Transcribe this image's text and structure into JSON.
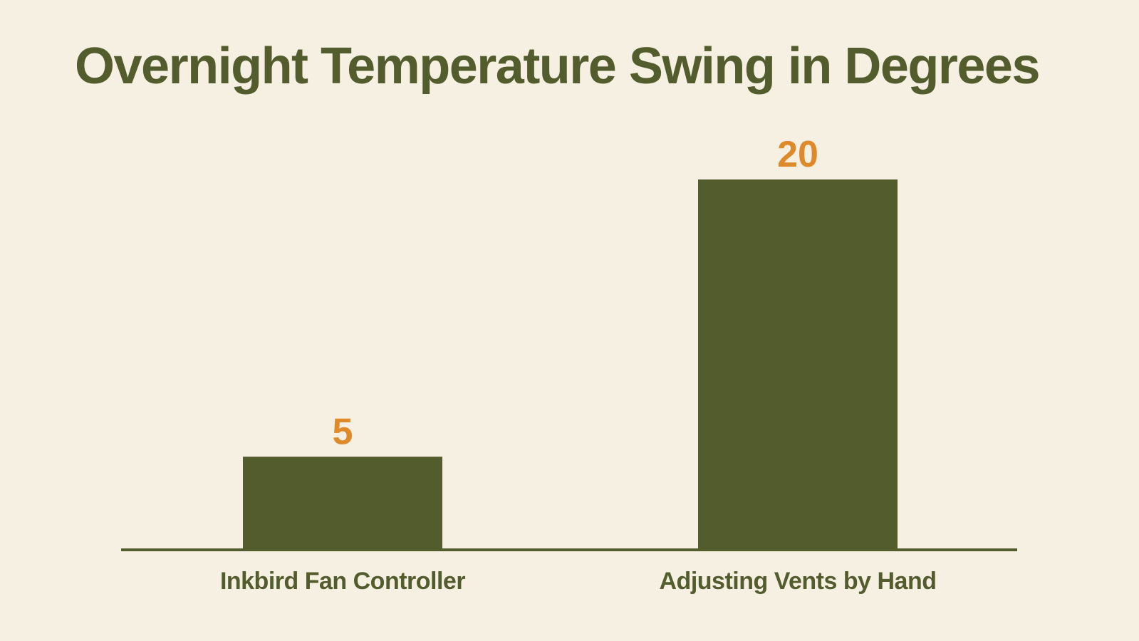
{
  "colors": {
    "background": "#f5f0e1",
    "bar": "#525c2c",
    "title": "#525c2c",
    "value_label": "#de8a2a",
    "category_label": "#525c2c",
    "baseline": "#525c2c"
  },
  "chart_data": {
    "type": "bar",
    "title": "Overnight Temperature Swing in Degrees",
    "xlabel": "",
    "ylabel": "",
    "categories": [
      "Inkbird Fan Controller",
      "Adjusting Vents by Hand"
    ],
    "values": [
      5,
      20
    ],
    "value_labels": [
      "5",
      "20"
    ],
    "ylim": [
      0,
      20
    ],
    "grid": false,
    "legend": "none"
  }
}
